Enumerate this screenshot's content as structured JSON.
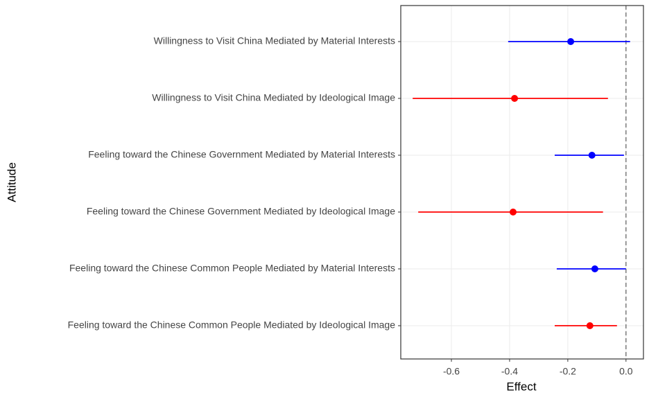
{
  "chart_data": {
    "type": "dot",
    "categories": [
      "Willingness to Visit China Mediated by Material Interests",
      "Willingness to Visit China Mediated by Ideological Image",
      "Feeling toward the Chinese Government Mediated by Material Interests",
      "Feeling toward the Chinese Government Mediated by Ideological Image",
      "Feeling toward the Chinese Common People Mediated by Material Interests",
      "Feeling toward the Chinese Common People Mediated by Ideological Image"
    ],
    "values": [
      -0.19,
      -0.383,
      -0.117,
      -0.388,
      -0.107,
      -0.124
    ],
    "lower": [
      -0.405,
      -0.733,
      -0.245,
      -0.714,
      -0.238,
      -0.245
    ],
    "upper": [
      0.014,
      -0.062,
      -0.007,
      -0.079,
      0.0,
      -0.031
    ],
    "colors": [
      "#0000ff",
      "#ff0000",
      "#0000ff",
      "#ff0000",
      "#0000ff",
      "#ff0000"
    ],
    "x_label": "Effect",
    "y_label": "Attitude",
    "xlim": [
      -0.774,
      0.06
    ],
    "xticks": [
      -0.6,
      -0.4,
      -0.2,
      {
        "value": 0,
        "label": "0.0"
      }
    ],
    "reference_line": 0,
    "grid": true
  }
}
